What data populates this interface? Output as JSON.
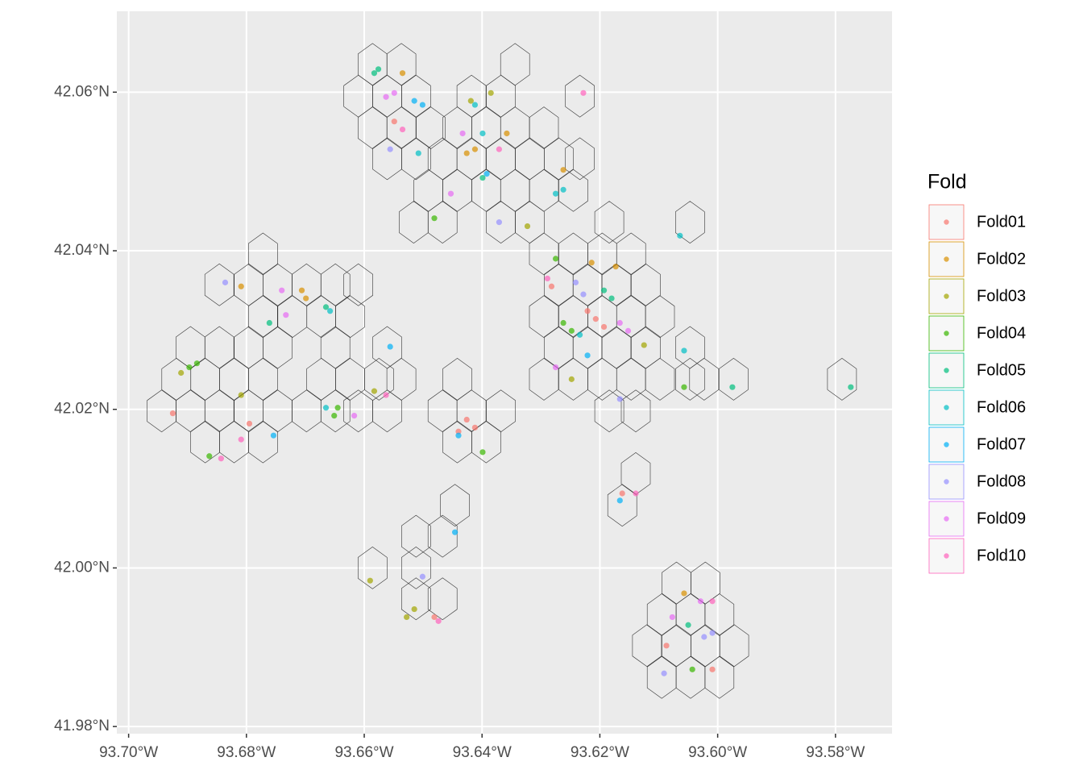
{
  "chart_data": {
    "type": "scatter",
    "legend_title": "Fold",
    "legend_position": "right",
    "grid": true,
    "xlim": [
      -93.702,
      -93.5704
    ],
    "ylim": [
      41.9791,
      42.0702
    ],
    "xticks": [
      {
        "value": -93.7,
        "label": "93.70°W"
      },
      {
        "value": -93.68,
        "label": "93.68°W"
      },
      {
        "value": -93.66,
        "label": "93.66°W"
      },
      {
        "value": -93.64,
        "label": "93.64°W"
      },
      {
        "value": -93.62,
        "label": "93.62°W"
      },
      {
        "value": -93.6,
        "label": "93.60°W"
      },
      {
        "value": -93.58,
        "label": "93.58°W"
      }
    ],
    "yticks": [
      {
        "value": 41.98,
        "label": "41.98°N"
      },
      {
        "value": 42.0,
        "label": "42.00°N"
      },
      {
        "value": 42.02,
        "label": "42.02°N"
      },
      {
        "value": 42.04,
        "label": "42.04°N"
      },
      {
        "value": 42.06,
        "label": "42.06°N"
      }
    ],
    "hexagons": [
      [
        -93.6586,
        42.0635
      ],
      [
        -93.6537,
        42.0635
      ],
      [
        -93.6344,
        42.0635
      ],
      [
        -93.661,
        42.0595
      ],
      [
        -93.6561,
        42.0595
      ],
      [
        -93.6512,
        42.0595
      ],
      [
        -93.6418,
        42.0595
      ],
      [
        -93.6368,
        42.0595
      ],
      [
        -93.6234,
        42.0595
      ],
      [
        -93.6586,
        42.0555
      ],
      [
        -93.6537,
        42.0555
      ],
      [
        -93.6487,
        42.0555
      ],
      [
        -93.6442,
        42.0555
      ],
      [
        -93.6393,
        42.0555
      ],
      [
        -93.6344,
        42.0555
      ],
      [
        -93.6295,
        42.0555
      ],
      [
        -93.6561,
        42.0516
      ],
      [
        -93.6512,
        42.0516
      ],
      [
        -93.6467,
        42.0516
      ],
      [
        -93.6418,
        42.0516
      ],
      [
        -93.6368,
        42.0516
      ],
      [
        -93.6319,
        42.0516
      ],
      [
        -93.627,
        42.0516
      ],
      [
        -93.6234,
        42.0516
      ],
      [
        -93.6491,
        42.0476
      ],
      [
        -93.6442,
        42.0476
      ],
      [
        -93.6393,
        42.0476
      ],
      [
        -93.6344,
        42.0476
      ],
      [
        -93.6295,
        42.0476
      ],
      [
        -93.6245,
        42.0476
      ],
      [
        -93.6516,
        42.0436
      ],
      [
        -93.6467,
        42.0436
      ],
      [
        -93.6368,
        42.0436
      ],
      [
        -93.6319,
        42.0436
      ],
      [
        -93.6184,
        42.0436
      ],
      [
        -93.6047,
        42.0436
      ],
      [
        -93.6772,
        42.0396
      ],
      [
        -93.6295,
        42.0396
      ],
      [
        -93.6245,
        42.0396
      ],
      [
        -93.6196,
        42.0396
      ],
      [
        -93.6147,
        42.0396
      ],
      [
        -93.6846,
        42.0357
      ],
      [
        -93.6796,
        42.0357
      ],
      [
        -93.6747,
        42.0357
      ],
      [
        -93.6698,
        42.0357
      ],
      [
        -93.6649,
        42.0357
      ],
      [
        -93.661,
        42.0357
      ],
      [
        -93.627,
        42.0357
      ],
      [
        -93.6221,
        42.0357
      ],
      [
        -93.6172,
        42.0357
      ],
      [
        -93.6122,
        42.0357
      ],
      [
        -93.6772,
        42.0317
      ],
      [
        -93.6722,
        42.0317
      ],
      [
        -93.6673,
        42.0317
      ],
      [
        -93.6624,
        42.0317
      ],
      [
        -93.6295,
        42.0317
      ],
      [
        -93.6245,
        42.0317
      ],
      [
        -93.6196,
        42.0317
      ],
      [
        -93.6147,
        42.0317
      ],
      [
        -93.6098,
        42.0317
      ],
      [
        -93.6895,
        42.0278
      ],
      [
        -93.6846,
        42.0278
      ],
      [
        -93.6796,
        42.0278
      ],
      [
        -93.6747,
        42.0278
      ],
      [
        -93.6649,
        42.0278
      ],
      [
        -93.6561,
        42.0278
      ],
      [
        -93.627,
        42.0278
      ],
      [
        -93.6221,
        42.0278
      ],
      [
        -93.6172,
        42.0278
      ],
      [
        -93.6122,
        42.0278
      ],
      [
        -93.6047,
        42.0278
      ],
      [
        -93.6919,
        42.0238
      ],
      [
        -93.687,
        42.0238
      ],
      [
        -93.6821,
        42.0238
      ],
      [
        -93.6772,
        42.0238
      ],
      [
        -93.6673,
        42.0238
      ],
      [
        -93.6624,
        42.0238
      ],
      [
        -93.6575,
        42.0238
      ],
      [
        -93.6537,
        42.0238
      ],
      [
        -93.6442,
        42.0238
      ],
      [
        -93.6295,
        42.0238
      ],
      [
        -93.6245,
        42.0238
      ],
      [
        -93.6196,
        42.0238
      ],
      [
        -93.6147,
        42.0238
      ],
      [
        -93.6098,
        42.0238
      ],
      [
        -93.6047,
        42.0238
      ],
      [
        -93.6023,
        42.0238
      ],
      [
        -93.5973,
        42.0238
      ],
      [
        -93.5789,
        42.0238
      ],
      [
        -93.6944,
        42.0198
      ],
      [
        -93.6895,
        42.0198
      ],
      [
        -93.6846,
        42.0198
      ],
      [
        -93.6796,
        42.0198
      ],
      [
        -93.6747,
        42.0198
      ],
      [
        -93.6698,
        42.0198
      ],
      [
        -93.6649,
        42.0198
      ],
      [
        -93.661,
        42.0198
      ],
      [
        -93.6561,
        42.0198
      ],
      [
        -93.6467,
        42.0198
      ],
      [
        -93.6418,
        42.0198
      ],
      [
        -93.6368,
        42.0198
      ],
      [
        -93.6184,
        42.0198
      ],
      [
        -93.6139,
        42.0198
      ],
      [
        -93.687,
        42.0159
      ],
      [
        -93.6821,
        42.0159
      ],
      [
        -93.6772,
        42.0159
      ],
      [
        -93.6442,
        42.0159
      ],
      [
        -93.6393,
        42.0159
      ],
      [
        -93.6139,
        42.0119
      ],
      [
        -93.6446,
        42.0079
      ],
      [
        -93.6162,
        42.0079
      ],
      [
        -93.6512,
        42.004
      ],
      [
        -93.6467,
        42.004
      ],
      [
        -93.6586,
        42.0
      ],
      [
        -93.6512,
        42.0
      ],
      [
        -93.6512,
        41.9961
      ],
      [
        -93.6467,
        41.9961
      ],
      [
        -93.607,
        41.9981
      ],
      [
        -93.6021,
        41.9981
      ],
      [
        -93.6095,
        41.9941
      ],
      [
        -93.6046,
        41.9941
      ],
      [
        -93.5997,
        41.9941
      ],
      [
        -93.612,
        41.9902
      ],
      [
        -93.607,
        41.9902
      ],
      [
        -93.6021,
        41.9902
      ],
      [
        -93.5972,
        41.9902
      ],
      [
        -93.6095,
        41.9862
      ],
      [
        -93.6046,
        41.9862
      ],
      [
        -93.5997,
        41.9862
      ]
    ],
    "series": [
      {
        "name": "Fold01",
        "color": "#F8766D",
        "x": [
          -93.6207,
          -93.6221,
          -93.6193,
          -93.6426,
          -93.6412,
          -93.644,
          -93.6549,
          -93.6925,
          -93.6795,
          -93.6162,
          -93.6087,
          -93.6009,
          -93.6481,
          -93.6282
        ],
        "y": [
          42.0314,
          42.0324,
          42.0304,
          42.0187,
          42.0177,
          42.0172,
          42.0563,
          42.0195,
          42.0182,
          42.0094,
          41.9902,
          41.9872,
          41.9938,
          42.0355
        ]
      },
      {
        "name": "Fold02",
        "color": "#D89000",
        "x": [
          -93.6535,
          -93.6426,
          -93.6412,
          -93.6706,
          -93.6699,
          -93.6214,
          -93.6173,
          -93.6262,
          -93.6057,
          -93.6358,
          -93.6809
        ],
        "y": [
          42.0624,
          42.0523,
          42.0528,
          42.035,
          42.034,
          42.0385,
          42.038,
          42.0502,
          41.9968,
          42.0548,
          42.0355
        ]
      },
      {
        "name": "Fold03",
        "color": "#A3A500",
        "x": [
          -93.6419,
          -93.6385,
          -93.6911,
          -93.6809,
          -93.6583,
          -93.6528,
          -93.6515,
          -93.6248,
          -93.659,
          -93.6125,
          -93.6323
        ],
        "y": [
          42.0589,
          42.0599,
          42.0246,
          42.0218,
          42.0223,
          41.9938,
          41.9948,
          42.0238,
          41.9984,
          42.0281,
          42.0431
        ]
      },
      {
        "name": "Fold04",
        "color": "#39B600",
        "x": [
          -93.6897,
          -93.6884,
          -93.6651,
          -93.6645,
          -93.6262,
          -93.6248,
          -93.6399,
          -93.6043,
          -93.6481,
          -93.6275,
          -93.6057,
          -93.6863
        ],
        "y": [
          42.0253,
          42.0258,
          42.0192,
          42.0202,
          42.0309,
          42.0299,
          42.0146,
          41.9872,
          42.0441,
          42.039,
          42.0228,
          42.0141
        ]
      },
      {
        "name": "Fold05",
        "color": "#00BF7D",
        "x": [
          -93.6583,
          -93.6576,
          -93.6761,
          -93.6193,
          -93.618,
          -93.6399,
          -93.605,
          -93.5774,
          -93.5975,
          -93.6665
        ],
        "y": [
          42.0624,
          42.0629,
          42.0309,
          42.035,
          42.034,
          42.0492,
          41.9928,
          42.0228,
          42.0228,
          42.0329
        ]
      },
      {
        "name": "Fold06",
        "color": "#00BFC4",
        "x": [
          -93.6508,
          -93.6399,
          -93.6275,
          -93.6262,
          -93.6658,
          -93.6057,
          -93.6665,
          -93.6234,
          -93.6412,
          -93.6064
        ],
        "y": [
          42.0523,
          42.0548,
          42.0472,
          42.0477,
          42.0324,
          42.0274,
          42.0202,
          42.0294,
          42.0584,
          42.0419
        ]
      },
      {
        "name": "Fold07",
        "color": "#00B0F6",
        "x": [
          -93.6515,
          -93.6501,
          -93.6556,
          -93.644,
          -93.6221,
          -93.6754,
          -93.6166,
          -93.6446,
          -93.6392
        ],
        "y": [
          42.0589,
          42.0584,
          42.0279,
          42.0167,
          42.0268,
          42.0167,
          42.0085,
          42.0045,
          42.0497
        ]
      },
      {
        "name": "Fold08",
        "color": "#9590FF",
        "x": [
          -93.6241,
          -93.6228,
          -93.6023,
          -93.6009,
          -93.6371,
          -93.6501,
          -93.6166,
          -93.6836,
          -93.6091,
          -93.6556
        ],
        "y": [
          42.036,
          42.0345,
          41.9913,
          41.9918,
          42.0436,
          41.9989,
          42.0213,
          42.036,
          41.9867,
          42.0528
        ]
      },
      {
        "name": "Fold09",
        "color": "#E76BF3",
        "x": [
          -93.6563,
          -93.6549,
          -93.674,
          -93.6733,
          -93.6453,
          -93.6166,
          -93.6152,
          -93.6275,
          -93.6077,
          -93.6029,
          -93.6617,
          -93.6433
        ],
        "y": [
          42.0594,
          42.0599,
          42.035,
          42.0319,
          42.0472,
          42.0309,
          42.0299,
          42.0253,
          41.9938,
          41.9958,
          42.0192,
          42.0548
        ]
      },
      {
        "name": "Fold10",
        "color": "#FF62BC",
        "x": [
          -93.6228,
          -93.6535,
          -93.6843,
          -93.6563,
          -93.6139,
          -93.6009,
          -93.6474,
          -93.6809,
          -93.6371,
          -93.6289
        ],
        "y": [
          42.0599,
          42.0553,
          42.0138,
          42.0218,
          42.0094,
          41.9958,
          41.9933,
          42.0162,
          42.0528,
          42.0365
        ]
      }
    ]
  }
}
